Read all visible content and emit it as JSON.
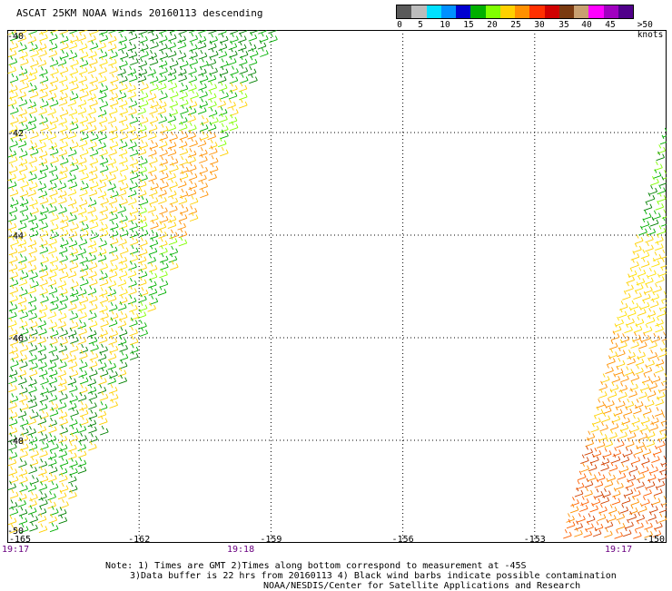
{
  "title": "ASCAT 25KM NOAA Winds 20160113 descending",
  "colorbar": {
    "labels": [
      "0",
      "5",
      "10",
      "15",
      "20",
      "25",
      "30",
      "35",
      "40",
      "45",
      ">50 knots"
    ],
    "colors": [
      "#5a5a5a",
      "#bcbcbc",
      "#00e0ff",
      "#0090ff",
      "#0000d0",
      "#00b000",
      "#80ff00",
      "#ffd000",
      "#ff9000",
      "#ff3000",
      "#d00000",
      "#7a3a10",
      "#c8a070",
      "#ff00ff",
      "#a000c0",
      "#50008a"
    ]
  },
  "map": {
    "lon_ticks": [
      "-165",
      "-162",
      "-159",
      "-156",
      "-153",
      "-150"
    ],
    "lat_ticks": [
      "-40",
      "-42",
      "-44",
      "-46",
      "-48",
      "-50"
    ],
    "lon_range": [
      -165,
      -150
    ],
    "lat_range": [
      -50,
      -40
    ]
  },
  "times": [
    "19:17",
    "19:18",
    "19:17"
  ],
  "notes": {
    "line1": "Note: 1) Times are GMT 2)Times along bottom correspond to measurement at -45S",
    "line2": "3)Data buffer is 22 hrs from 20160113 4) Black wind barbs indicate possible contamination",
    "line3": "NOAA/NESDIS/Center for Satellite Applications and Research"
  }
}
